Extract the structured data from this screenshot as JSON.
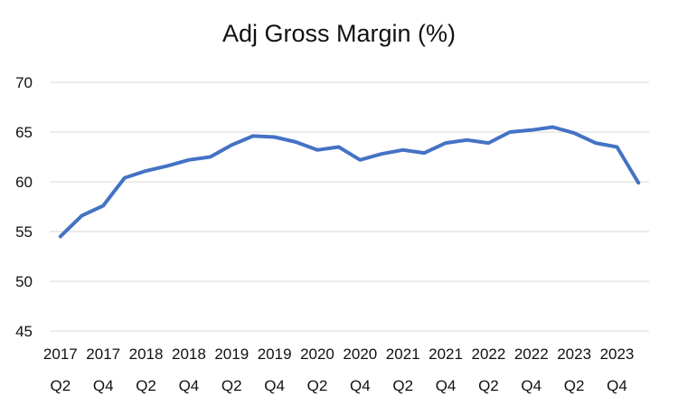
{
  "chart_data": {
    "type": "line",
    "title": "Adj Gross Margin (%)",
    "xlabel": "",
    "ylabel": "",
    "ylim": [
      45,
      70
    ],
    "yticks": [
      45,
      50,
      55,
      60,
      65,
      70
    ],
    "grid": true,
    "legend": "none",
    "color": "#4472C4",
    "x": [
      "2017 Q2",
      "2017 Q3",
      "2017 Q4",
      "2018 Q1",
      "2018 Q2",
      "2018 Q3",
      "2018 Q4",
      "2019 Q1",
      "2019 Q2",
      "2019 Q3",
      "2019 Q4",
      "2020 Q1",
      "2020 Q2",
      "2020 Q3",
      "2020 Q4",
      "2021 Q1",
      "2021 Q2",
      "2021 Q3",
      "2021 Q4",
      "2022 Q1",
      "2022 Q2",
      "2022 Q3",
      "2022 Q4",
      "2023 Q1",
      "2023 Q2",
      "2023 Q3",
      "2023 Q4",
      "2024 Q1"
    ],
    "xtick_labels": [
      {
        "year": "2017",
        "quarter": "Q2"
      },
      {
        "year": "2017",
        "quarter": "Q4"
      },
      {
        "year": "2018",
        "quarter": "Q2"
      },
      {
        "year": "2018",
        "quarter": "Q4"
      },
      {
        "year": "2019",
        "quarter": "Q2"
      },
      {
        "year": "2019",
        "quarter": "Q4"
      },
      {
        "year": "2020",
        "quarter": "Q2"
      },
      {
        "year": "2020",
        "quarter": "Q4"
      },
      {
        "year": "2021",
        "quarter": "Q2"
      },
      {
        "year": "2021",
        "quarter": "Q4"
      },
      {
        "year": "2022",
        "quarter": "Q2"
      },
      {
        "year": "2022",
        "quarter": "Q4"
      },
      {
        "year": "2023",
        "quarter": "Q2"
      },
      {
        "year": "2023",
        "quarter": "Q4"
      }
    ],
    "values": [
      54.5,
      56.6,
      57.6,
      60.4,
      61.1,
      61.6,
      62.2,
      62.5,
      63.7,
      64.6,
      64.5,
      64.0,
      63.2,
      63.5,
      62.2,
      62.8,
      63.2,
      62.9,
      63.9,
      64.2,
      63.9,
      65.0,
      65.2,
      65.5,
      64.9,
      63.9,
      63.5,
      59.9
    ]
  }
}
